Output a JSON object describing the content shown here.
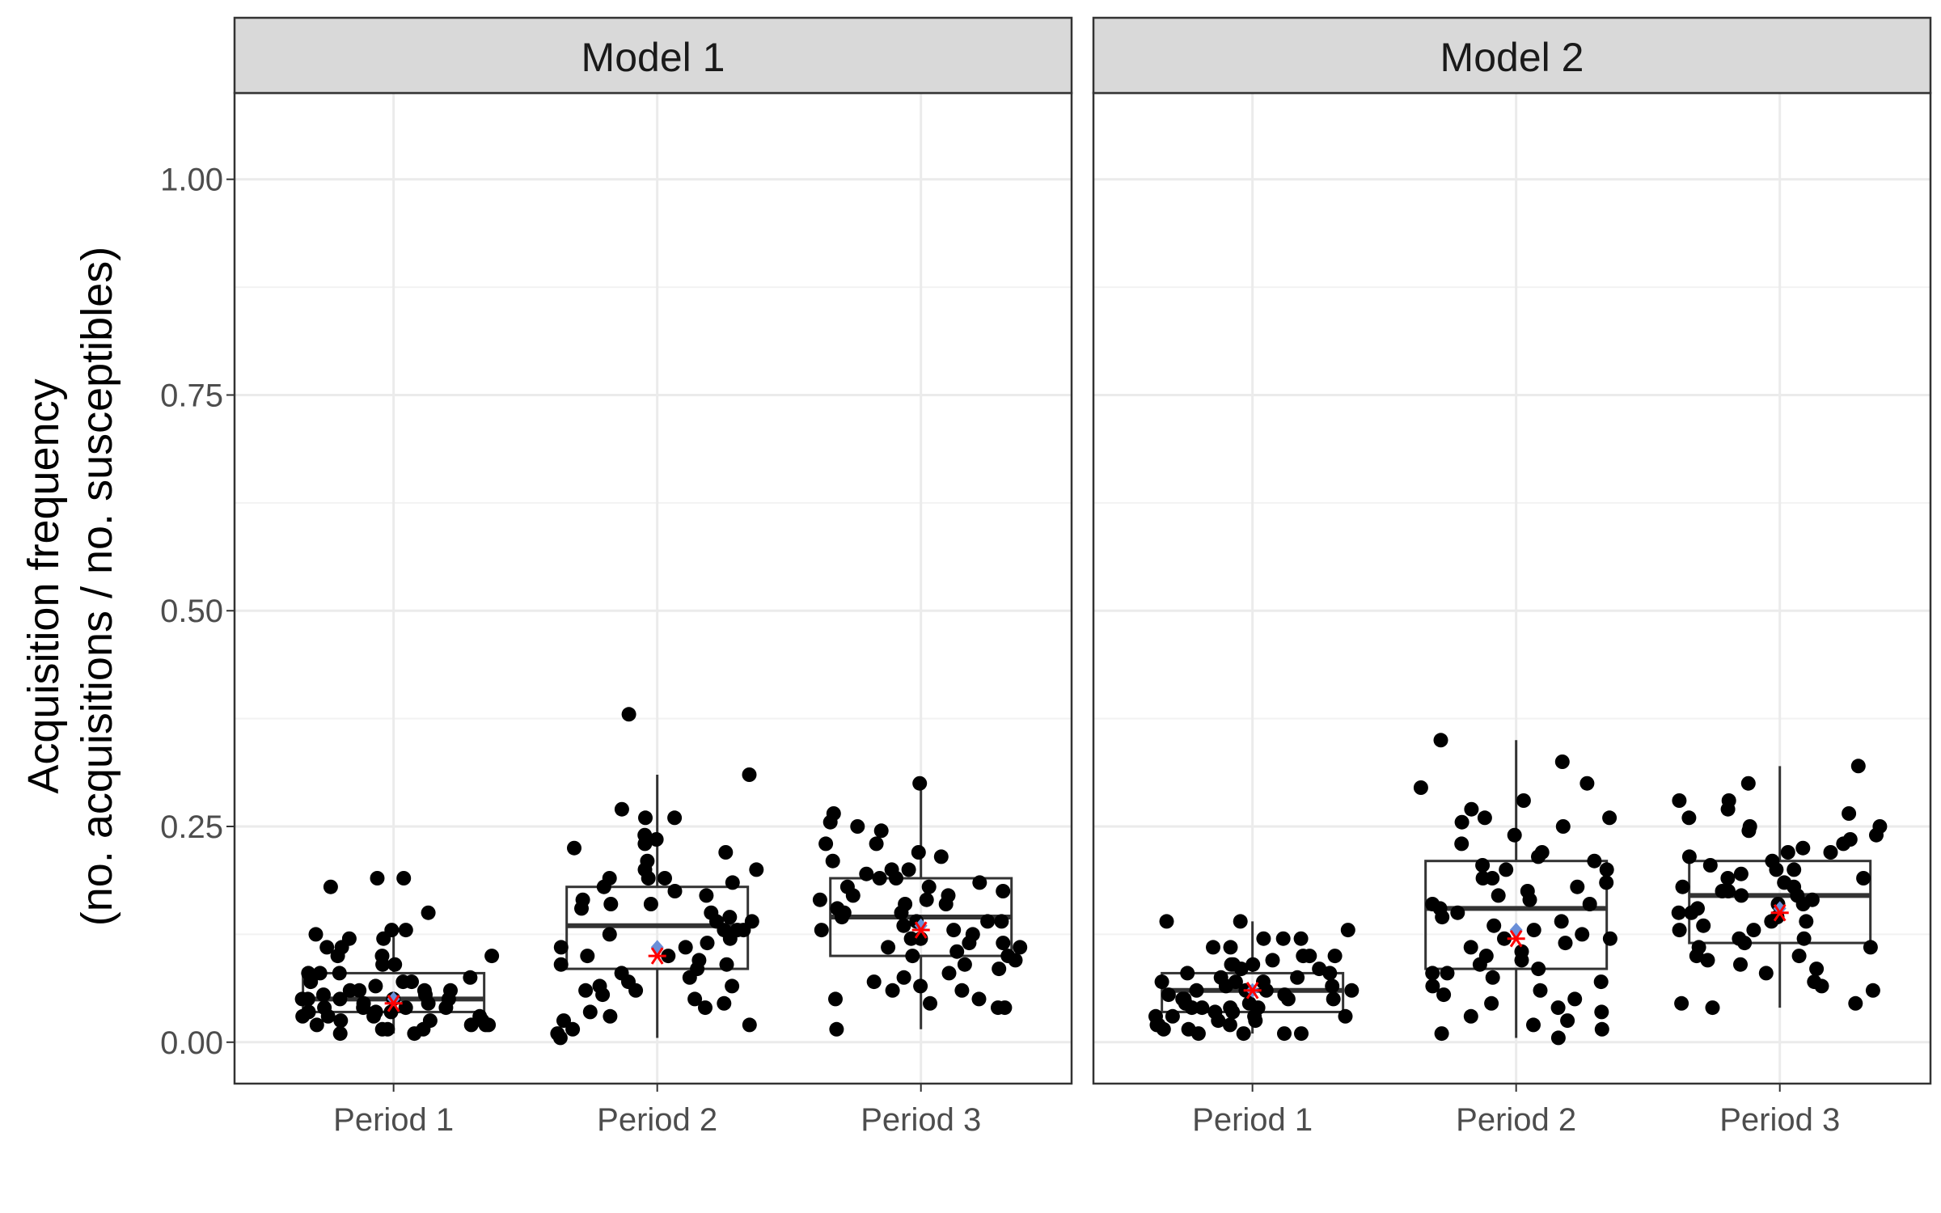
{
  "chart_data": {
    "type": "scatter",
    "ylabel": [
      "Acquisition frequency",
      "(no. acquisitions / no. susceptibles)"
    ],
    "ylim": [
      0,
      1
    ],
    "y_ticks": [
      0,
      0.25,
      0.5,
      0.75,
      1
    ],
    "y_tick_labels": [
      "0.00",
      "0.25",
      "0.50",
      "0.75",
      "1.00"
    ],
    "categories": [
      "Period 1",
      "Period 2",
      "Period 3"
    ],
    "grid": true,
    "colors": {
      "points": "#000000",
      "mean_marker": "#6a8fd8",
      "reference_marker": "#ff0000",
      "strip_fill": "#d9d9d9",
      "grid": "#ebebeb"
    },
    "panels": [
      {
        "title": "Model 1",
        "groups": [
          {
            "category": "Period 1",
            "box": {
              "whisker_low": 0.01,
              "q1": 0.035,
              "median": 0.05,
              "q3": 0.08,
              "whisker_high": 0.13
            },
            "mean": 0.05,
            "reference": 0.045,
            "points": [
              0.13,
              0.13,
              0.125,
              0.11,
              0.1,
              0.09,
              0.08,
              0.075,
              0.07,
              0.065,
              0.06,
              0.06,
              0.055,
              0.05,
              0.05,
              0.05,
              0.045,
              0.04,
              0.04,
              0.035,
              0.03,
              0.03,
              0.025,
              0.02,
              0.02,
              0.015,
              0.02,
              0.18,
              0.19,
              0.19,
              0.15,
              0.12,
              0.11,
              0.1,
              0.09,
              0.08,
              0.07,
              0.06,
              0.055,
              0.05,
              0.045,
              0.04,
              0.035,
              0.03,
              0.025,
              0.02,
              0.015,
              0.01,
              0.01,
              0.03,
              0.04,
              0.06,
              0.08,
              0.1,
              0.12,
              0.07,
              0.05,
              0.035,
              0.025,
              0.015
            ]
          },
          {
            "category": "Period 2",
            "box": {
              "whisker_low": 0.005,
              "q1": 0.085,
              "median": 0.135,
              "q3": 0.18,
              "whisker_high": 0.31
            },
            "mean": 0.11,
            "reference": 0.1,
            "points": [
              0.31,
              0.27,
              0.24,
              0.235,
              0.23,
              0.22,
              0.21,
              0.2,
              0.19,
              0.18,
              0.17,
              0.165,
              0.16,
              0.15,
              0.145,
              0.14,
              0.13,
              0.12,
              0.115,
              0.11,
              0.1,
              0.09,
              0.08,
              0.07,
              0.065,
              0.06,
              0.05,
              0.04,
              0.03,
              0.02,
              0.01,
              0.38,
              0.26,
              0.26,
              0.225,
              0.2,
              0.19,
              0.185,
              0.175,
              0.16,
              0.155,
              0.14,
              0.13,
              0.125,
              0.11,
              0.1,
              0.095,
              0.085,
              0.075,
              0.065,
              0.055,
              0.045,
              0.035,
              0.025,
              0.015,
              0.005,
              0.19,
              0.13,
              0.09,
              0.06
            ]
          },
          {
            "category": "Period 3",
            "box": {
              "whisker_low": 0.015,
              "q1": 0.1,
              "median": 0.145,
              "q3": 0.19,
              "whisker_high": 0.3
            },
            "mean": 0.135,
            "reference": 0.13,
            "points": [
              0.3,
              0.255,
              0.23,
              0.22,
              0.21,
              0.2,
              0.195,
              0.19,
              0.185,
              0.18,
              0.17,
              0.165,
              0.16,
              0.155,
              0.15,
              0.145,
              0.14,
              0.135,
              0.13,
              0.125,
              0.12,
              0.115,
              0.11,
              0.1,
              0.09,
              0.08,
              0.07,
              0.06,
              0.05,
              0.04,
              0.015,
              0.265,
              0.25,
              0.245,
              0.23,
              0.215,
              0.2,
              0.19,
              0.18,
              0.175,
              0.165,
              0.16,
              0.15,
              0.14,
              0.13,
              0.12,
              0.115,
              0.105,
              0.1,
              0.095,
              0.085,
              0.075,
              0.065,
              0.06,
              0.05,
              0.04,
              0.045,
              0.11,
              0.17,
              0.14
            ]
          }
        ]
      },
      {
        "title": "Model 2",
        "groups": [
          {
            "category": "Period 1",
            "box": {
              "whisker_low": 0.01,
              "q1": 0.035,
              "median": 0.06,
              "q3": 0.08,
              "whisker_high": 0.14
            },
            "mean": 0.06,
            "reference": 0.06,
            "points": [
              0.14,
              0.14,
              0.13,
              0.12,
              0.12,
              0.11,
              0.1,
              0.1,
              0.09,
              0.085,
              0.08,
              0.075,
              0.07,
              0.065,
              0.06,
              0.06,
              0.055,
              0.05,
              0.05,
              0.045,
              0.04,
              0.04,
              0.035,
              0.03,
              0.03,
              0.025,
              0.02,
              0.02,
              0.015,
              0.01,
              0.01,
              0.12,
              0.11,
              0.1,
              0.095,
              0.09,
              0.085,
              0.08,
              0.075,
              0.07,
              0.065,
              0.06,
              0.055,
              0.05,
              0.045,
              0.04,
              0.035,
              0.03,
              0.025,
              0.02,
              0.015,
              0.01,
              0.01,
              0.07,
              0.05,
              0.03,
              0.09,
              0.06,
              0.04,
              0.02
            ]
          },
          {
            "category": "Period 2",
            "box": {
              "whisker_low": 0.005,
              "q1": 0.085,
              "median": 0.155,
              "q3": 0.21,
              "whisker_high": 0.35
            },
            "mean": 0.13,
            "reference": 0.12,
            "points": [
              0.35,
              0.325,
              0.3,
              0.295,
              0.28,
              0.27,
              0.26,
              0.255,
              0.25,
              0.24,
              0.23,
              0.22,
              0.21,
              0.2,
              0.19,
              0.185,
              0.18,
              0.17,
              0.16,
              0.15,
              0.145,
              0.14,
              0.13,
              0.12,
              0.11,
              0.1,
              0.09,
              0.08,
              0.07,
              0.06,
              0.05,
              0.04,
              0.03,
              0.02,
              0.01,
              0.005,
              0.26,
              0.215,
              0.205,
              0.19,
              0.175,
              0.165,
              0.155,
              0.135,
              0.125,
              0.115,
              0.105,
              0.095,
              0.085,
              0.075,
              0.065,
              0.055,
              0.045,
              0.035,
              0.025,
              0.015,
              0.2,
              0.16,
              0.12,
              0.08
            ]
          },
          {
            "category": "Period 3",
            "box": {
              "whisker_low": 0.04,
              "q1": 0.115,
              "median": 0.17,
              "q3": 0.21,
              "whisker_high": 0.32
            },
            "mean": 0.155,
            "reference": 0.15,
            "points": [
              0.32,
              0.3,
              0.28,
              0.27,
              0.26,
              0.25,
              0.245,
              0.24,
              0.23,
              0.225,
              0.22,
              0.215,
              0.21,
              0.205,
              0.2,
              0.195,
              0.19,
              0.185,
              0.18,
              0.175,
              0.17,
              0.165,
              0.16,
              0.155,
              0.15,
              0.145,
              0.14,
              0.13,
              0.12,
              0.11,
              0.1,
              0.09,
              0.08,
              0.07,
              0.06,
              0.045,
              0.04,
              0.28,
              0.265,
              0.25,
              0.235,
              0.22,
              0.2,
              0.19,
              0.18,
              0.17,
              0.16,
              0.15,
              0.14,
              0.13,
              0.12,
              0.11,
              0.1,
              0.095,
              0.085,
              0.065,
              0.045,
              0.175,
              0.135,
              0.115
            ]
          }
        ]
      }
    ]
  }
}
